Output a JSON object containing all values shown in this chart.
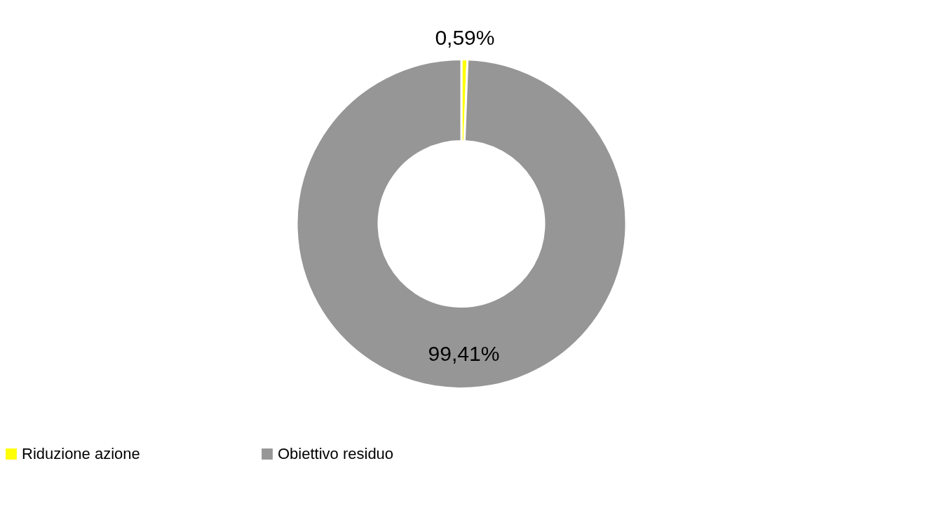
{
  "chart_data": {
    "type": "donut",
    "categories": [
      "Riduzione azione",
      "Obiettivo residuo"
    ],
    "values": [
      0.59,
      99.41
    ],
    "colors": [
      "#ffff00",
      "#969696"
    ],
    "value_labels": [
      "0,59%",
      "99,41%"
    ],
    "legend": "bottom"
  }
}
